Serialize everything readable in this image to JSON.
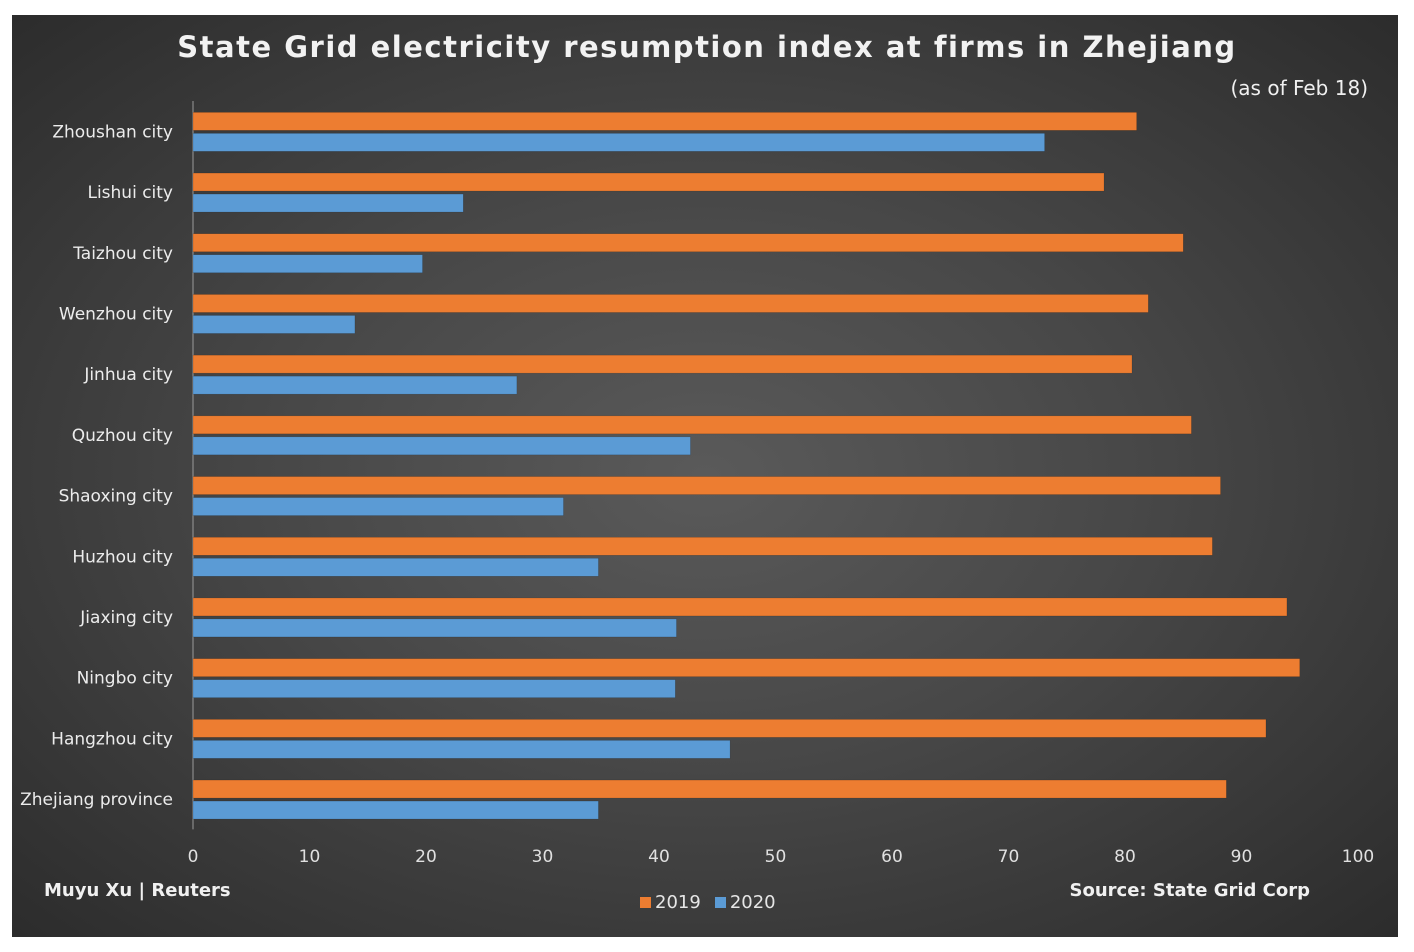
{
  "chart_data": {
    "type": "bar",
    "orientation": "horizontal",
    "title": "State Grid electricity resumption index at firms in Zhejiang",
    "subtitle": "(as of Feb 18)",
    "credit": "Muyu Xu | Reuters",
    "source": "Source: State Grid Corp",
    "categories": [
      "Zhoushan city",
      "Lishui city",
      "Taizhou city",
      "Wenzhou city",
      "Jinhua city",
      "Quzhou city",
      "Shaoxing city",
      "Huzhou city",
      "Jiaxing city",
      "Ningbo city",
      "Hangzhou city",
      "Zhejiang province"
    ],
    "series": [
      {
        "name": "2019",
        "color": "#ed7d31",
        "values": [
          81.0,
          78.2,
          85.0,
          82.0,
          80.6,
          85.7,
          88.2,
          87.5,
          93.9,
          95.0,
          92.1,
          88.7
        ]
      },
      {
        "name": "2020",
        "color": "#5b9bd5",
        "values": [
          73.1,
          23.2,
          19.7,
          13.9,
          27.8,
          42.7,
          31.8,
          34.8,
          41.5,
          41.4,
          46.1,
          34.8
        ]
      }
    ],
    "xlim": [
      0,
      100
    ],
    "xticks": [
      "0",
      "10",
      "20",
      "30",
      "40",
      "50",
      "60",
      "70",
      "80",
      "90",
      "100"
    ],
    "xlabel": "",
    "ylabel": "",
    "grid": false,
    "legend_position": "bottom"
  }
}
